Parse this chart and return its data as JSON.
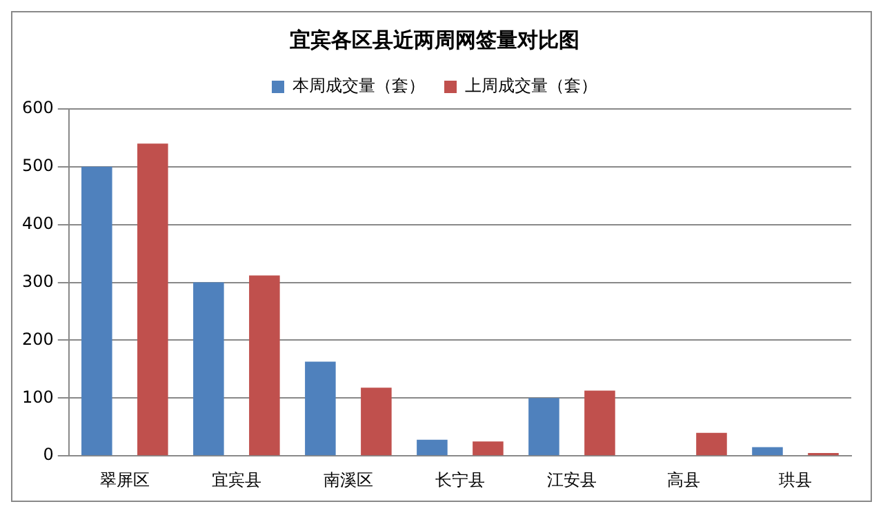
{
  "chart_data": {
    "type": "bar",
    "title": "宜宾各区县近两周网签量对比图",
    "categories": [
      "翠屏区",
      "宜宾县",
      "南溪区",
      "长宁县",
      "江安县",
      "高县",
      "珙县"
    ],
    "series": [
      {
        "name": "本周成交量（套）",
        "color": "#4f81bd",
        "values": [
          500,
          300,
          163,
          28,
          100,
          null,
          15
        ]
      },
      {
        "name": "上周成交量（套）",
        "color": "#c0504d",
        "values": [
          540,
          312,
          118,
          25,
          113,
          40,
          5
        ]
      }
    ],
    "ylim": [
      0,
      600
    ],
    "yticks": [
      0,
      100,
      200,
      300,
      400,
      500,
      600
    ],
    "grid": "y",
    "legend": "top"
  }
}
